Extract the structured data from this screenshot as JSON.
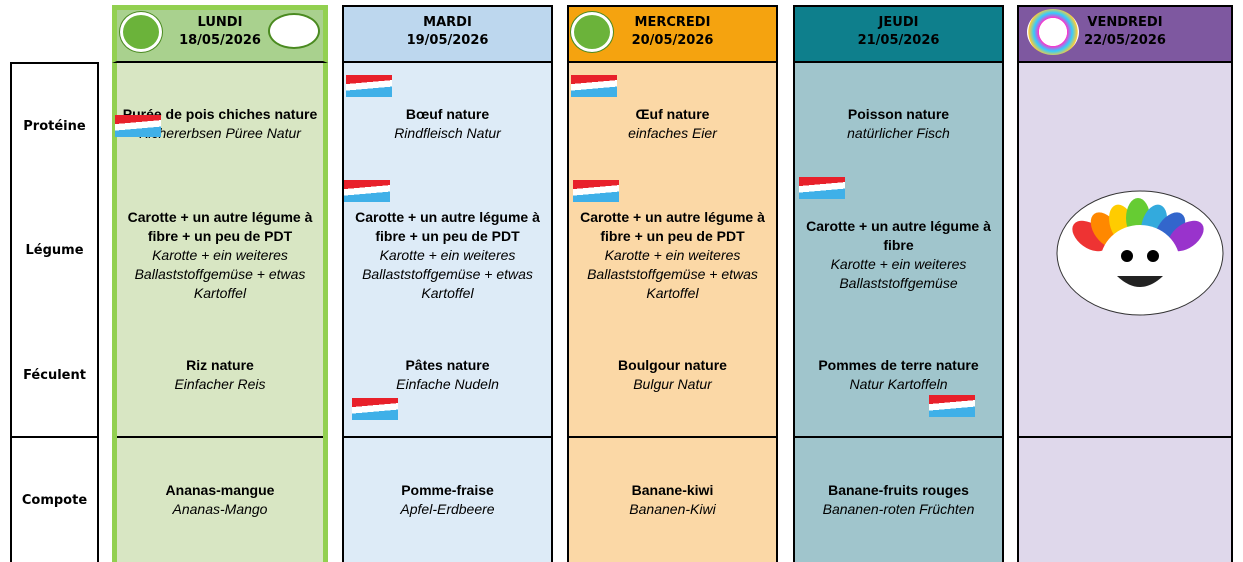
{
  "row_labels": [
    "Protéine",
    "Légume",
    "Féculent",
    "Compote"
  ],
  "days": [
    {
      "name": "LUNDI",
      "date": "18/05/2026",
      "meals": [
        {
          "fr": "Purée de pois chiches nature",
          "de": "Kichererbsen Püree Natur"
        },
        {
          "fr": "Carotte + un autre légume à fibre + un peu de PDT",
          "de": "Karotte + ein weiteres Ballaststoffgemüse + etwas Kartoffel"
        },
        {
          "fr": "Riz nature",
          "de": "Einfacher Reis"
        },
        {
          "fr": "Ananas-mangue",
          "de": "Ananas-Mango"
        }
      ]
    },
    {
      "name": "MARDI",
      "date": "19/05/2026",
      "meals": [
        {
          "fr": "Bœuf nature",
          "de": "Rindfleisch Natur"
        },
        {
          "fr": "Carotte + un autre légume à fibre + un peu de PDT",
          "de": "Karotte + ein weiteres Ballaststoffgemüse + etwas Kartoffel"
        },
        {
          "fr": "Pâtes nature",
          "de": "Einfache Nudeln"
        },
        {
          "fr": "Pomme-fraise",
          "de": "Apfel-Erdbeere"
        }
      ]
    },
    {
      "name": "MERCREDI",
      "date": "20/05/2026",
      "meals": [
        {
          "fr": "Œuf nature",
          "de": "einfaches Eier"
        },
        {
          "fr": "Carotte + un autre légume à fibre + un peu de PDT",
          "de": "Karotte + ein weiteres Ballaststoffgemüse + etwas Kartoffel"
        },
        {
          "fr": "Boulgour nature",
          "de": "Bulgur Natur"
        },
        {
          "fr": "Banane-kiwi",
          "de": "Bananen-Kiwi"
        }
      ]
    },
    {
      "name": "JEUDI",
      "date": "21/05/2026",
      "meals": [
        {
          "fr": "Poisson nature",
          "de": "natürlicher Fisch"
        },
        {
          "fr": "Carotte + un autre légume à fibre",
          "de": "Karotte + ein weiteres Ballaststoffgemüse"
        },
        {
          "fr": "Pommes de terre nature",
          "de": "Natur Kartoffeln"
        },
        {
          "fr": "Banane-fruits rouges",
          "de": "Bananen-roten Früchten"
        }
      ]
    },
    {
      "name": "VENDREDI",
      "date": "22/05/2026",
      "meals": []
    }
  ]
}
